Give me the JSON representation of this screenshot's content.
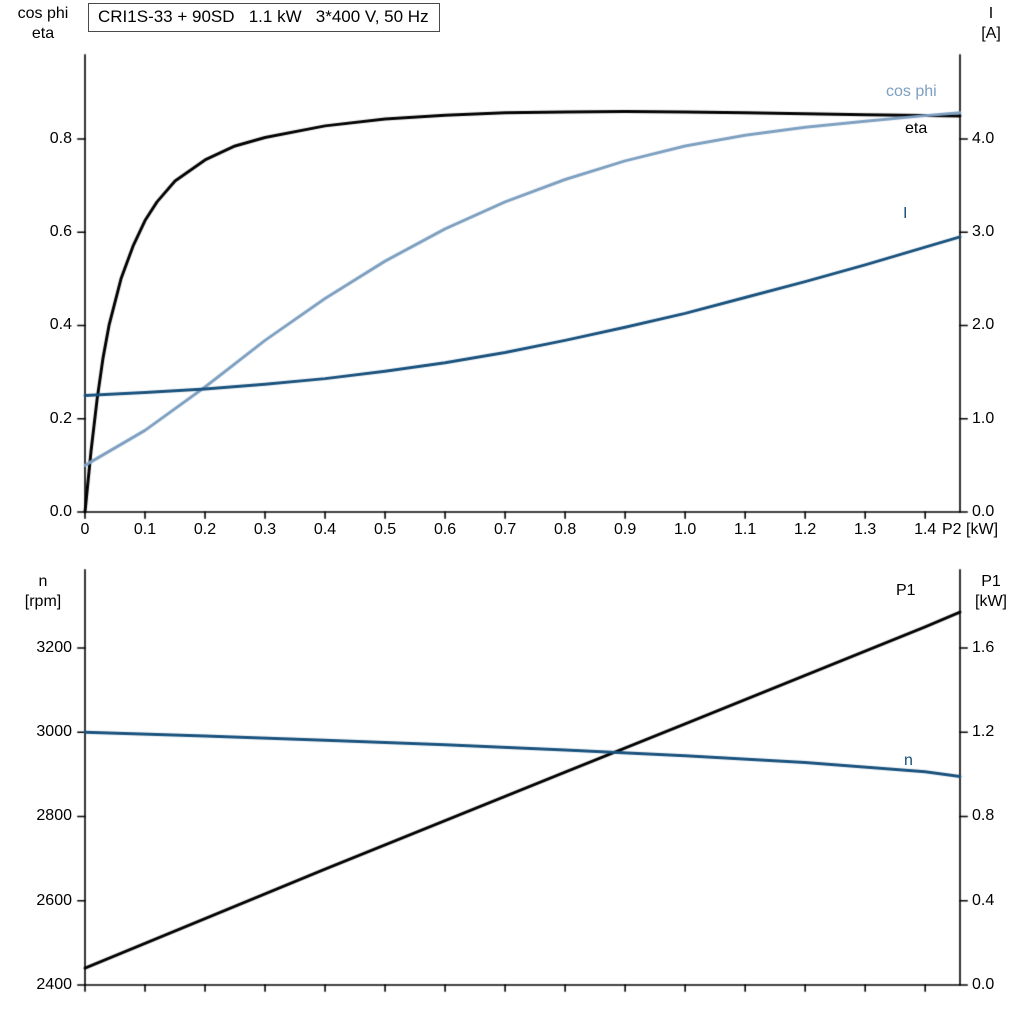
{
  "header": {
    "title_box": "CRI1S-33 + 90SD   1.1 kW   3*400 V, 50 Hz"
  },
  "chart_data": [
    {
      "type": "line",
      "title": "CRI1S-33 + 90SD   1.1 kW   3*400 V, 50 Hz",
      "xlabel": "P2 [kW]",
      "xlim": [
        0,
        1.458
      ],
      "grid": false,
      "legend_position": "curve-end-labels",
      "x_ticks": {
        "values": [
          0,
          0.1,
          0.2,
          0.3,
          0.4,
          0.5,
          0.6,
          0.7,
          0.8,
          0.9,
          1.0,
          1.1,
          1.2,
          1.3,
          1.4
        ],
        "labels": [
          "0",
          "0.1",
          "0.2",
          "0.3",
          "0.4",
          "0.5",
          "0.6",
          "0.7",
          "0.8",
          "0.9",
          "1.0",
          "1.1",
          "1.2",
          "1.3",
          "1.4"
        ]
      },
      "left_axis": {
        "label_lines": [
          "cos phi",
          "eta"
        ],
        "lim": [
          0,
          0.98
        ],
        "ticks": {
          "values": [
            0,
            0.2,
            0.4,
            0.6,
            0.8
          ],
          "labels": [
            "0.0",
            "0.2",
            "0.4",
            "0.6",
            "0.8"
          ]
        }
      },
      "right_axis": {
        "label_lines": [
          "I",
          "[A]"
        ],
        "lim": [
          0,
          4.9
        ],
        "ticks": {
          "values": [
            0,
            1,
            2,
            3,
            4
          ],
          "labels": [
            "0.0",
            "1.0",
            "2.0",
            "3.0",
            "4.0"
          ]
        }
      },
      "series": [
        {
          "name": "eta",
          "axis": "left",
          "color": "#000000",
          "x": [
            0,
            0.01,
            0.02,
            0.03,
            0.04,
            0.06,
            0.08,
            0.1,
            0.12,
            0.15,
            0.2,
            0.25,
            0.3,
            0.4,
            0.5,
            0.6,
            0.7,
            0.8,
            0.9,
            1.0,
            1.1,
            1.2,
            1.3,
            1.4,
            1.458
          ],
          "y": [
            0,
            0.13,
            0.24,
            0.33,
            0.4,
            0.5,
            0.57,
            0.625,
            0.665,
            0.71,
            0.755,
            0.785,
            0.803,
            0.828,
            0.843,
            0.851,
            0.856,
            0.858,
            0.859,
            0.858,
            0.856,
            0.854,
            0.852,
            0.85,
            0.849
          ]
        },
        {
          "name": "cos phi",
          "axis": "left",
          "color": "#7d9fc0",
          "x": [
            0,
            0.1,
            0.2,
            0.3,
            0.4,
            0.5,
            0.6,
            0.7,
            0.8,
            0.9,
            1.0,
            1.1,
            1.2,
            1.3,
            1.4,
            1.458
          ],
          "y": [
            0.1,
            0.175,
            0.268,
            0.368,
            0.458,
            0.538,
            0.607,
            0.665,
            0.713,
            0.753,
            0.785,
            0.808,
            0.825,
            0.838,
            0.85,
            0.856
          ]
        },
        {
          "name": "I",
          "axis": "right",
          "color": "#17507c",
          "x": [
            0,
            0.1,
            0.2,
            0.3,
            0.4,
            0.5,
            0.6,
            0.7,
            0.8,
            0.9,
            1.0,
            1.1,
            1.2,
            1.3,
            1.4,
            1.458
          ],
          "y": [
            1.25,
            1.28,
            1.32,
            1.37,
            1.43,
            1.51,
            1.6,
            1.71,
            1.84,
            1.98,
            2.13,
            2.3,
            2.47,
            2.65,
            2.84,
            2.95
          ]
        }
      ]
    },
    {
      "type": "line",
      "title": "",
      "xlabel": "",
      "xlim": [
        0,
        1.458
      ],
      "grid": false,
      "legend_position": "curve-end-labels",
      "x_ticks": {
        "values": [
          0,
          0.1,
          0.2,
          0.3,
          0.4,
          0.5,
          0.6,
          0.7,
          0.8,
          0.9,
          1.0,
          1.1,
          1.2,
          1.3,
          1.4
        ],
        "labels": null
      },
      "left_axis": {
        "label_lines": [
          "n",
          "[rpm]"
        ],
        "lim": [
          2400,
          3385
        ],
        "ticks": {
          "values": [
            2400,
            2600,
            2800,
            3000,
            3200
          ],
          "labels": [
            "2400",
            "2600",
            "2800",
            "3000",
            "3200"
          ]
        }
      },
      "right_axis": {
        "label_lines": [
          "P1",
          "[kW]"
        ],
        "lim": [
          0,
          1.97
        ],
        "ticks": {
          "values": [
            0,
            0.4,
            0.8,
            1.2,
            1.6
          ],
          "labels": [
            "0.0",
            "0.4",
            "0.8",
            "1.2",
            "1.6"
          ]
        }
      },
      "series": [
        {
          "name": "P1",
          "axis": "right",
          "color": "#000000",
          "x": [
            0,
            0.2,
            0.4,
            0.6,
            0.8,
            1.0,
            1.2,
            1.4,
            1.458
          ],
          "y": [
            0.08,
            0.315,
            0.55,
            0.78,
            1.01,
            1.24,
            1.47,
            1.7,
            1.77
          ]
        },
        {
          "name": "n",
          "axis": "left",
          "color": "#17507c",
          "x": [
            0,
            0.2,
            0.4,
            0.6,
            0.8,
            1.0,
            1.2,
            1.4,
            1.458
          ],
          "y": [
            3000,
            2991,
            2981,
            2970,
            2958,
            2944,
            2928,
            2906,
            2895
          ]
        }
      ]
    }
  ]
}
